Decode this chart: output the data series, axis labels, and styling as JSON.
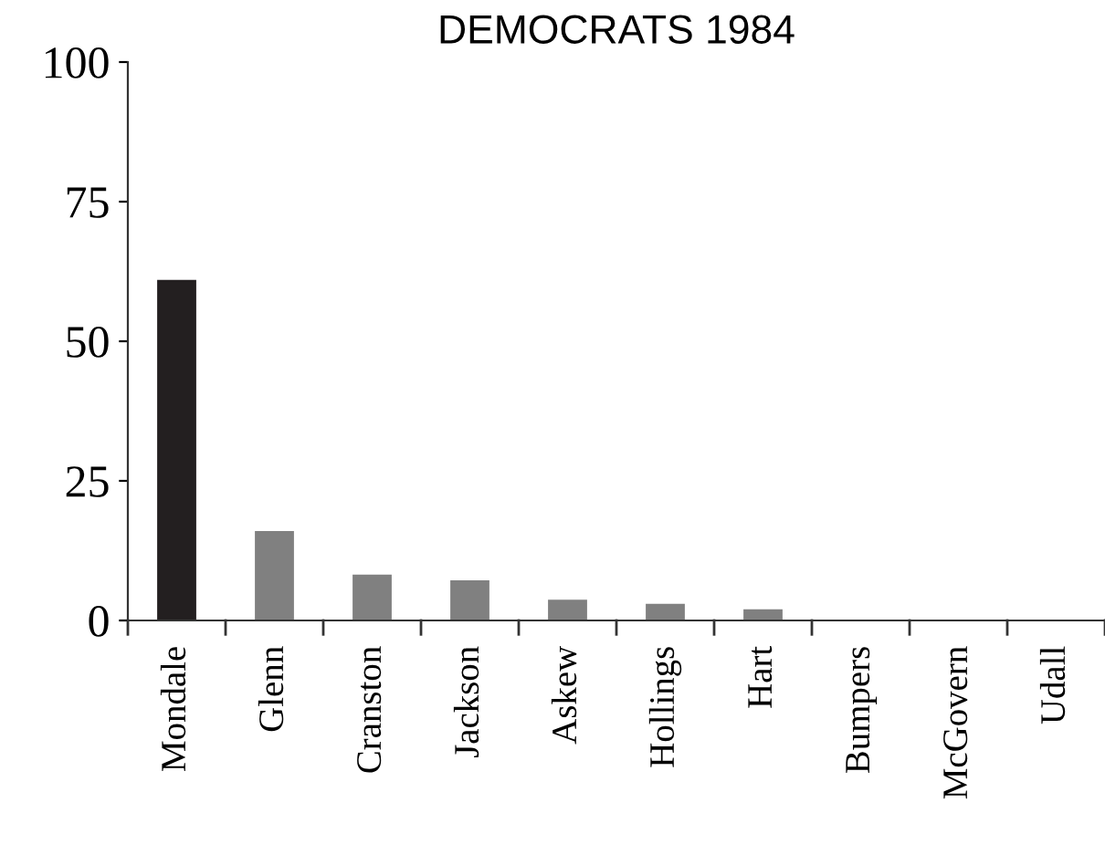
{
  "chart_data": {
    "type": "bar",
    "title": "DEMOCRATS 1984",
    "categories": [
      "Mondale",
      "Glenn",
      "Cranston",
      "Jackson",
      "Askew",
      "Hollings",
      "Hart",
      "Bumpers",
      "McGovern",
      "Udall"
    ],
    "values": [
      61,
      16,
      8.2,
      7.2,
      3.7,
      3,
      2,
      0,
      0,
      0
    ],
    "colors": [
      "#231f20",
      "#808080",
      "#808080",
      "#808080",
      "#808080",
      "#808080",
      "#808080",
      "#808080",
      "#808080",
      "#808080"
    ],
    "ylim": [
      0,
      100
    ],
    "yticks": [
      0,
      25,
      50,
      75,
      100
    ],
    "grid": false
  }
}
